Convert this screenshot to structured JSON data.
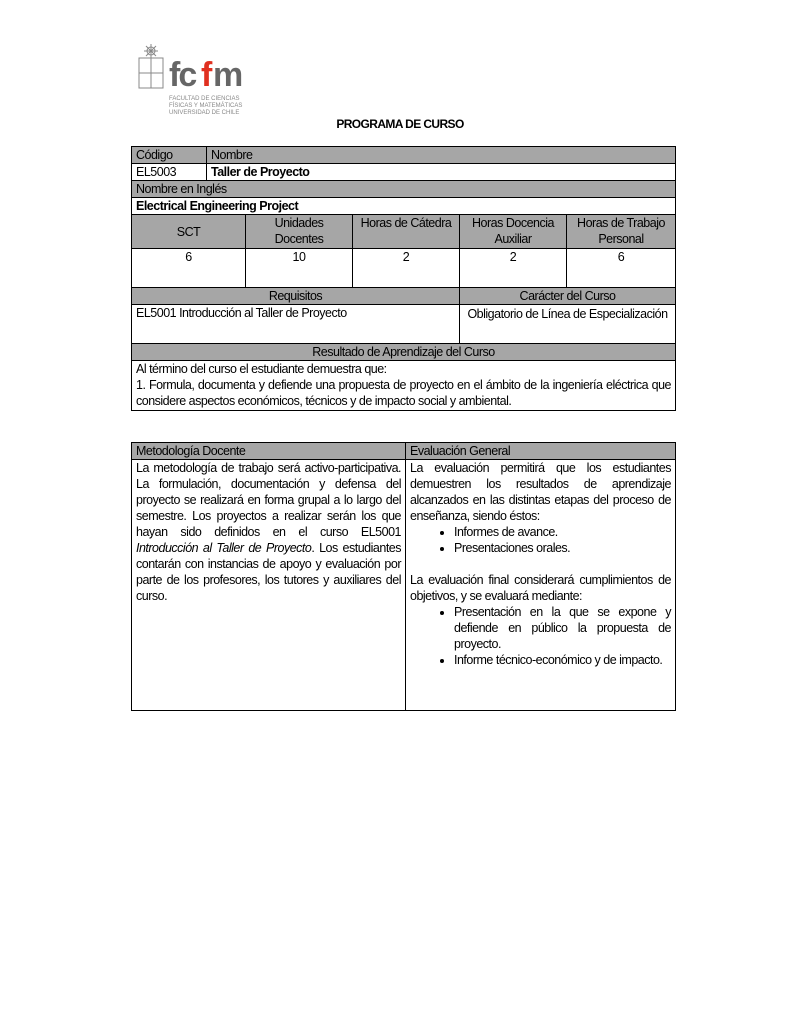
{
  "logo": {
    "text": "fcfm",
    "subtitle": [
      "FACULTAD DE CIENCIAS",
      "FÍSICAS Y MATEMÁTICAS",
      "UNIVERSIDAD DE CHILE"
    ]
  },
  "title": "PROGRAMA DE CURSO",
  "course": {
    "code_label": "Código",
    "name_label": "Nombre",
    "code": "EL5003",
    "name": "Taller de Proyecto",
    "english_label": "Nombre en Inglés",
    "english_name": "Electrical Engineering Project",
    "units_headers": [
      "SCT",
      "Unidades Docentes",
      "Horas de Cátedra",
      "Horas Docencia Auxiliar",
      "Horas de Trabajo Personal"
    ],
    "units_values": [
      "6",
      "10",
      "2",
      "2",
      "6"
    ],
    "req_label": "Requisitos",
    "char_label": "Carácter del Curso",
    "requisites": "EL5001 Introducción al Taller de Proyecto",
    "character": "Obligatorio de Línea de Especialización",
    "outcome_label": "Resultado de Aprendizaje del Curso",
    "outcome_intro": "Al término del curso el estudiante demuestra que:",
    "outcome_1": "1. Formula, documenta y defiende una propuesta de proyecto en el ámbito de la ingeniería eléctrica que considere aspectos económicos, técnicos y de impacto social y ambiental."
  },
  "method": {
    "label": "Metodología Docente",
    "text_1": "La metodología de trabajo será activo-participativa. La formulación, documentación y defensa del proyecto se realizará en forma grupal a lo largo del semestre. Los proyectos a realizar serán los que hayan sido definidos en el curso EL5001 ",
    "text_italic": "Introducción al Taller de Proyecto",
    "text_2": ". Los estudiantes contarán con instancias de apoyo y evaluación por parte de los profesores, los tutores y auxiliares del curso."
  },
  "evaluation": {
    "label": "Evaluación General",
    "intro": "La evaluación permitirá que los estudiantes demuestren los resultados de aprendizaje alcanzados en las distintas etapas del proceso de enseñanza, siendo éstos:",
    "items_1": [
      "Informes de avance.",
      "Presentaciones orales."
    ],
    "final": "La evaluación final considerará cumplimientos de objetivos, y se evaluará mediante:",
    "items_2": [
      "Presentación en la que se expone y defiende en público la propuesta de proyecto.",
      "Informe técnico-económico y de impacto."
    ]
  }
}
